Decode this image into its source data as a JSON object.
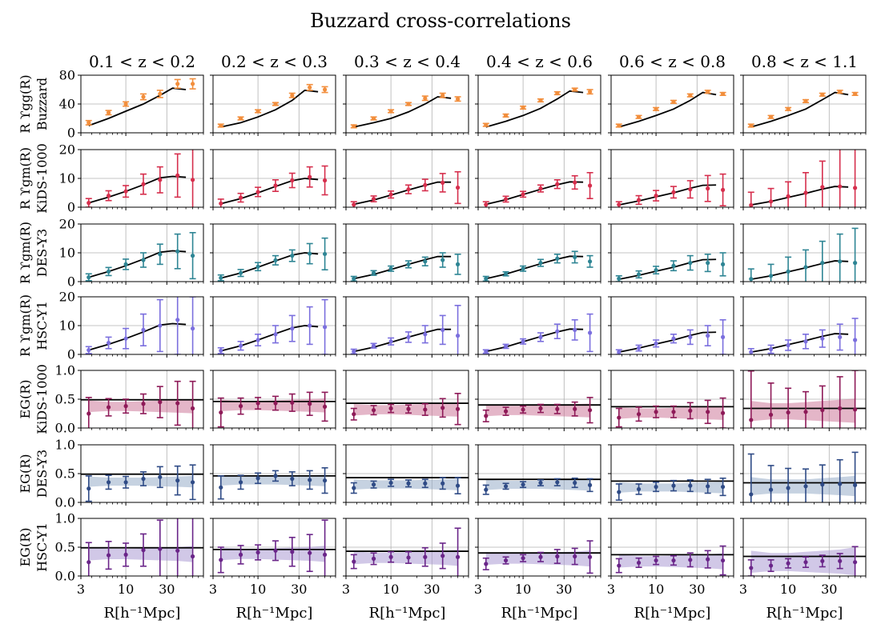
{
  "title": "Buzzard cross-correlations",
  "columns": [
    "0.1 < z < 0.2",
    "0.2 < z < 0.3",
    "0.3 < z < 0.4",
    "0.4 < z < 0.6",
    "0.6 < z < 0.8",
    "0.8 < z < 1.1"
  ],
  "xlabel": "R[h⁻¹Mpc]",
  "x_ticks": [
    3,
    10,
    30
  ],
  "xlim": [
    3,
    80
  ],
  "rows": [
    {
      "label_line1": "R ϒgg(R)",
      "label_line2": "Buzzard",
      "yticks": [
        0,
        40,
        80
      ]
    },
    {
      "label_line1": "R ϒgm(R)",
      "label_line2": "KiDS-1000",
      "yticks": [
        0,
        10,
        20
      ]
    },
    {
      "label_line1": "R ϒgm(R)",
      "label_line2": "DES-Y3",
      "yticks": [
        0,
        10,
        20
      ]
    },
    {
      "label_line1": "R ϒgm(R)",
      "label_line2": "HSC-Y1",
      "yticks": [
        0,
        10,
        20
      ]
    },
    {
      "label_line1": "EG(R)",
      "label_line2": "KiDS-1000",
      "yticks": [
        0.0,
        0.5,
        1.0
      ]
    },
    {
      "label_line1": "EG(R)",
      "label_line2": "DES-Y3",
      "yticks": [
        0.0,
        0.5,
        1.0
      ]
    },
    {
      "label_line1": "EG(R)",
      "label_line2": "HSC-Y1",
      "yticks": [
        0.0,
        0.5,
        1.0
      ]
    }
  ],
  "chart_data": {
    "type": "scatter",
    "title": "Buzzard cross-correlations",
    "xlabel": "R[h⁻¹Mpc]",
    "x_scale": "log",
    "xlim": [
      3,
      80
    ],
    "grid": true,
    "R": [
      3.7,
      6.3,
      10,
      16,
      25,
      40,
      60
    ],
    "R_model": [
      3.7,
      6.3,
      10,
      16,
      25,
      35,
      50
    ],
    "row_names": [
      "Upsilon_gg Buzzard",
      "Upsilon_gm KiDS-1000",
      "Upsilon_gm DES-Y3",
      "Upsilon_gm HSC-Y1",
      "E_G KiDS-1000",
      "E_G DES-Y3",
      "E_G HSC-Y1"
    ],
    "ylims": [
      [
        0,
        80
      ],
      [
        0,
        20
      ],
      [
        0,
        20
      ],
      [
        0,
        20
      ],
      [
        0,
        1
      ],
      [
        0,
        1
      ],
      [
        0,
        1
      ]
    ],
    "colors": [
      "#f28e3c",
      "#d62f4d",
      "#2e8594",
      "#7b6fde",
      "#8e1a58",
      "#2f4b86",
      "#6a2589"
    ],
    "band_colors": [
      "#c96d91",
      "#8ea6c4",
      "#a391cf"
    ],
    "upsilon_gg": {
      "model": [
        [
          10,
          20,
          30,
          40,
          52,
          62,
          60
        ],
        [
          8,
          14,
          22,
          32,
          45,
          59,
          57
        ],
        [
          8,
          14,
          20,
          29,
          40,
          50,
          48
        ],
        [
          8,
          16,
          24,
          34,
          47,
          58,
          56
        ],
        [
          8,
          16,
          24,
          33,
          45,
          56,
          53
        ],
        [
          8,
          16,
          24,
          33,
          46,
          56,
          53
        ]
      ],
      "values": [
        [
          14,
          28,
          40,
          50,
          54,
          68,
          68
        ],
        [
          10,
          20,
          30,
          40,
          52,
          63,
          60
        ],
        [
          9,
          20,
          30,
          40,
          48,
          52,
          47
        ],
        [
          11,
          24,
          35,
          45,
          55,
          60,
          57
        ],
        [
          10,
          22,
          33,
          43,
          52,
          57,
          54
        ],
        [
          10,
          22,
          33,
          44,
          53,
          57,
          54
        ]
      ],
      "errors": [
        [
          3,
          3,
          3,
          4,
          5,
          6,
          7
        ],
        [
          2,
          2,
          2,
          2,
          3,
          4,
          4
        ],
        [
          2,
          2,
          2,
          2,
          3,
          3,
          3
        ],
        [
          2,
          2,
          2,
          2,
          2,
          2,
          3
        ],
        [
          2,
          2,
          2,
          2,
          2,
          2,
          2
        ],
        [
          2,
          2,
          2,
          2,
          2,
          2,
          2
        ]
      ]
    },
    "upsilon_gm": {
      "model": [
        [
          1.5,
          3.5,
          5.5,
          7.8,
          10.2,
          10.7,
          10.4
        ],
        [
          1.2,
          3.0,
          5.0,
          7.2,
          9.2,
          10.0,
          9.6
        ],
        [
          1.0,
          2.5,
          4.2,
          6.0,
          7.6,
          8.7,
          8.7
        ],
        [
          1.0,
          2.6,
          4.4,
          6.2,
          7.8,
          8.8,
          8.7
        ],
        [
          0.8,
          2.2,
          3.6,
          5.0,
          6.6,
          7.6,
          7.7
        ],
        [
          0.8,
          2.0,
          3.4,
          4.8,
          6.3,
          7.2,
          7.0
        ]
      ],
      "values": [
        [
          [
            1.5,
            4.0,
            5.5,
            8.0,
            9.5,
            11.0,
            9.5
          ],
          [
            1.3,
            3.3,
            5.3,
            7.5,
            9.3,
            10.5,
            9.3
          ],
          [
            0.9,
            2.9,
            4.4,
            6.2,
            7.7,
            8.5,
            6.8
          ],
          [
            0.9,
            2.8,
            4.5,
            6.5,
            8.0,
            8.6,
            7.5
          ],
          [
            0.9,
            2.5,
            4.0,
            5.2,
            6.2,
            6.5,
            6.0
          ],
          [
            0.7,
            2.0,
            3.8,
            5.0,
            7.0,
            7.2,
            6.7
          ]
        ],
        [
          [
            1.5,
            3.5,
            6.0,
            7.5,
            9.5,
            10.5,
            9.0
          ],
          [
            1.3,
            3.0,
            5.2,
            7.4,
            9.0,
            9.7,
            9.6
          ],
          [
            1.0,
            3.0,
            4.5,
            6.0,
            7.0,
            7.5,
            6.0
          ],
          [
            1.0,
            2.7,
            4.5,
            6.5,
            8.0,
            8.5,
            7.0
          ],
          [
            1.0,
            2.5,
            4.0,
            5.5,
            6.5,
            6.5,
            6.0
          ],
          [
            0.9,
            2.0,
            3.5,
            5.0,
            6.5,
            7.0,
            6.5
          ]
        ],
        [
          [
            1.5,
            4.0,
            5.5,
            8.5,
            10.0,
            12.0,
            9.0
          ],
          [
            1.3,
            3.0,
            5.0,
            7.0,
            9.0,
            10.0,
            9.5
          ],
          [
            1.0,
            3.0,
            4.5,
            6.0,
            7.0,
            8.5,
            6.5
          ],
          [
            1.0,
            2.8,
            4.5,
            6.0,
            8.0,
            8.5,
            7.5
          ],
          [
            0.8,
            2.2,
            3.8,
            5.5,
            6.0,
            6.5,
            6.0
          ],
          [
            0.8,
            1.8,
            3.2,
            4.5,
            5.5,
            6.0,
            5.0
          ]
        ]
      ],
      "errors": [
        [
          [
            1.5,
            1.7,
            2.0,
            3.5,
            4.5,
            7.5,
            12.0
          ],
          [
            1.5,
            1.5,
            1.6,
            2.0,
            2.5,
            3.5,
            5.0
          ],
          [
            1.0,
            1.0,
            1.2,
            1.5,
            2.0,
            3.2,
            5.5
          ],
          [
            1.0,
            1.0,
            1.0,
            1.2,
            1.5,
            2.3,
            4.5
          ],
          [
            1.0,
            1.5,
            1.8,
            2.0,
            3.0,
            4.5,
            5.5
          ],
          [
            4.5,
            4.5,
            5.0,
            7.0,
            9.0,
            13.0,
            15.0
          ]
        ],
        [
          [
            1.2,
            1.4,
            1.8,
            2.5,
            3.5,
            6.0,
            8.0
          ],
          [
            1.0,
            1.2,
            1.4,
            1.6,
            2.0,
            3.5,
            5.5
          ],
          [
            0.8,
            0.8,
            0.9,
            1.2,
            1.5,
            2.5,
            3.5
          ],
          [
            0.8,
            0.7,
            0.9,
            1.2,
            1.5,
            2.0,
            2.0
          ],
          [
            1.0,
            1.2,
            1.3,
            1.7,
            2.5,
            3.0,
            4.0
          ],
          [
            3.5,
            4.0,
            5.0,
            6.0,
            7.5,
            9.5,
            12.0
          ]
        ],
        [
          [
            1.2,
            2.0,
            3.5,
            5.5,
            9.0,
            12.0,
            11.0
          ],
          [
            1.0,
            1.5,
            2.0,
            3.0,
            4.5,
            6.5,
            9.5
          ],
          [
            0.8,
            0.8,
            1.2,
            1.8,
            3.0,
            5.0,
            10.5
          ],
          [
            0.6,
            0.7,
            0.9,
            1.5,
            2.5,
            3.5,
            6.5
          ],
          [
            0.8,
            1.0,
            1.2,
            1.5,
            2.5,
            3.5,
            6.0
          ],
          [
            1.2,
            1.4,
            1.8,
            2.5,
            3.0,
            4.5,
            7.5
          ]
        ]
      ]
    },
    "E_G": {
      "model": [
        0.49,
        0.46,
        0.43,
        0.4,
        0.37,
        0.34
      ],
      "values": [
        [
          [
            0.25,
            0.36,
            0.38,
            0.42,
            0.45,
            0.43,
            0.34
          ],
          [
            0.27,
            0.38,
            0.43,
            0.43,
            0.44,
            0.42,
            0.37
          ],
          [
            0.24,
            0.31,
            0.34,
            0.33,
            0.32,
            0.35,
            0.33
          ],
          [
            0.21,
            0.29,
            0.32,
            0.34,
            0.33,
            0.33,
            0.31
          ],
          [
            0.18,
            0.24,
            0.28,
            0.28,
            0.3,
            0.28,
            0.26
          ],
          [
            0.14,
            0.23,
            0.27,
            0.28,
            0.31,
            0.34,
            0.32
          ]
        ],
        [
          [
            0.24,
            0.35,
            0.35,
            0.41,
            0.44,
            0.38,
            0.35
          ],
          [
            0.26,
            0.35,
            0.42,
            0.46,
            0.41,
            0.39,
            0.38
          ],
          [
            0.25,
            0.31,
            0.34,
            0.33,
            0.33,
            0.33,
            0.29
          ],
          [
            0.22,
            0.28,
            0.31,
            0.34,
            0.35,
            0.34,
            0.3
          ],
          [
            0.18,
            0.23,
            0.27,
            0.29,
            0.29,
            0.28,
            0.27
          ],
          [
            0.14,
            0.22,
            0.25,
            0.28,
            0.31,
            0.32,
            0.3
          ]
        ],
        [
          [
            0.24,
            0.36,
            0.37,
            0.45,
            0.47,
            0.44,
            0.34
          ],
          [
            0.28,
            0.37,
            0.41,
            0.44,
            0.42,
            0.4,
            0.37
          ],
          [
            0.25,
            0.3,
            0.33,
            0.32,
            0.33,
            0.35,
            0.33
          ],
          [
            0.21,
            0.27,
            0.31,
            0.33,
            0.34,
            0.34,
            0.33
          ],
          [
            0.18,
            0.23,
            0.27,
            0.27,
            0.28,
            0.29,
            0.27
          ],
          [
            0.14,
            0.18,
            0.22,
            0.24,
            0.26,
            0.26,
            0.24
          ]
        ]
      ],
      "errors": [
        [
          [
            0.28,
            0.15,
            0.12,
            0.17,
            0.27,
            0.38,
            0.47
          ],
          [
            0.25,
            0.14,
            0.1,
            0.12,
            0.15,
            0.2,
            0.25
          ],
          [
            0.1,
            0.08,
            0.07,
            0.07,
            0.1,
            0.16,
            0.27
          ],
          [
            0.1,
            0.07,
            0.06,
            0.07,
            0.08,
            0.12,
            0.22
          ],
          [
            0.16,
            0.12,
            0.1,
            0.1,
            0.14,
            0.2,
            0.26
          ],
          [
            0.85,
            0.55,
            0.42,
            0.35,
            0.42,
            0.55,
            0.68
          ]
        ],
        [
          [
            0.22,
            0.12,
            0.1,
            0.12,
            0.18,
            0.25,
            0.3
          ],
          [
            0.2,
            0.12,
            0.09,
            0.09,
            0.12,
            0.16,
            0.22
          ],
          [
            0.09,
            0.06,
            0.06,
            0.06,
            0.07,
            0.1,
            0.14
          ],
          [
            0.08,
            0.05,
            0.05,
            0.05,
            0.06,
            0.08,
            0.11
          ],
          [
            0.14,
            0.09,
            0.08,
            0.09,
            0.1,
            0.12,
            0.15
          ],
          [
            0.7,
            0.42,
            0.34,
            0.3,
            0.34,
            0.42,
            0.57
          ]
        ],
        [
          [
            0.34,
            0.24,
            0.2,
            0.28,
            0.5,
            0.6,
            0.8
          ],
          [
            0.22,
            0.16,
            0.13,
            0.17,
            0.25,
            0.32,
            0.6
          ],
          [
            0.12,
            0.1,
            0.09,
            0.1,
            0.16,
            0.22,
            0.5
          ],
          [
            0.1,
            0.06,
            0.06,
            0.08,
            0.12,
            0.14,
            0.28
          ],
          [
            0.12,
            0.08,
            0.07,
            0.08,
            0.12,
            0.15,
            0.25
          ],
          [
            0.14,
            0.1,
            0.08,
            0.09,
            0.1,
            0.13,
            0.27
          ]
        ]
      ],
      "band_halfwidths": [
        [
          0.1,
          0.08,
          0.08,
          0.09,
          0.1,
          0.11,
          0.12
        ],
        [
          0.09,
          0.07,
          0.07,
          0.07,
          0.08,
          0.09,
          0.1
        ],
        [
          0.11,
          0.09,
          0.09,
          0.1,
          0.11,
          0.12,
          0.14
        ]
      ]
    }
  }
}
